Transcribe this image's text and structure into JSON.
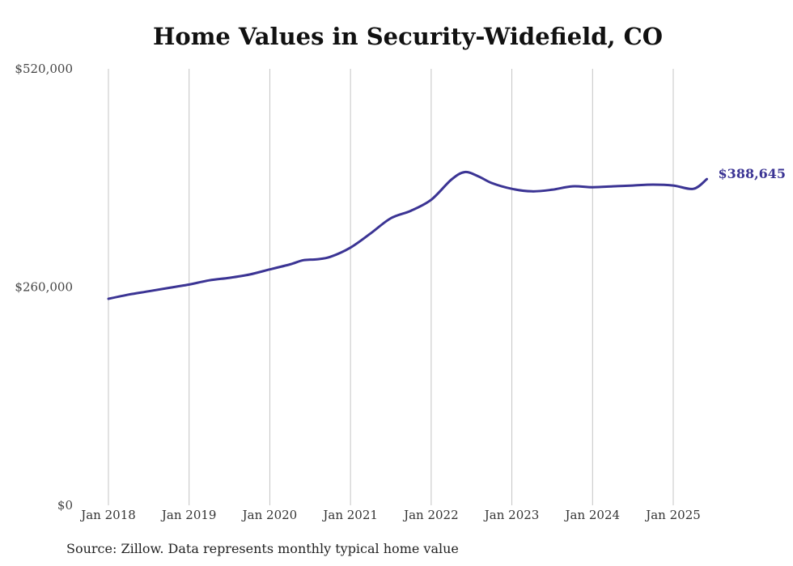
{
  "chart_data": {
    "type": "line",
    "title": "Home Values in Security-Widefield, CO",
    "xlabel": "",
    "ylabel": "",
    "ylim": [
      0,
      520000
    ],
    "yticks": [
      {
        "value": 0,
        "label": "$0"
      },
      {
        "value": 260000,
        "label": "$260,000"
      },
      {
        "value": 520000,
        "label": "$520,000"
      }
    ],
    "xticks": [
      "Jan 2018",
      "Jan 2019",
      "Jan 2020",
      "Jan 2021",
      "Jan 2022",
      "Jan 2023",
      "Jan 2024",
      "Jan 2025"
    ],
    "grid": "vertical",
    "line_color": "#3b3494",
    "end_label": "$388,645",
    "series": [
      {
        "values": [
          {
            "x": "2018-01",
            "y": 246000
          },
          {
            "x": "2018-04",
            "y": 251000
          },
          {
            "x": "2018-07",
            "y": 255000
          },
          {
            "x": "2018-10",
            "y": 259000
          },
          {
            "x": "2019-01",
            "y": 263000
          },
          {
            "x": "2019-04",
            "y": 268000
          },
          {
            "x": "2019-07",
            "y": 271000
          },
          {
            "x": "2019-10",
            "y": 275000
          },
          {
            "x": "2020-01",
            "y": 281000
          },
          {
            "x": "2020-04",
            "y": 287000
          },
          {
            "x": "2020-06",
            "y": 292000
          },
          {
            "x": "2020-08",
            "y": 293000
          },
          {
            "x": "2020-10",
            "y": 296000
          },
          {
            "x": "2021-01",
            "y": 307000
          },
          {
            "x": "2021-04",
            "y": 324000
          },
          {
            "x": "2021-07",
            "y": 342000
          },
          {
            "x": "2021-10",
            "y": 351000
          },
          {
            "x": "2022-01",
            "y": 364000
          },
          {
            "x": "2022-04",
            "y": 388000
          },
          {
            "x": "2022-06",
            "y": 397000
          },
          {
            "x": "2022-08",
            "y": 392000
          },
          {
            "x": "2022-10",
            "y": 384000
          },
          {
            "x": "2023-01",
            "y": 377000
          },
          {
            "x": "2023-04",
            "y": 374000
          },
          {
            "x": "2023-07",
            "y": 376000
          },
          {
            "x": "2023-10",
            "y": 380000
          },
          {
            "x": "2024-01",
            "y": 379000
          },
          {
            "x": "2024-04",
            "y": 380000
          },
          {
            "x": "2024-07",
            "y": 381000
          },
          {
            "x": "2024-10",
            "y": 382000
          },
          {
            "x": "2025-01",
            "y": 381000
          },
          {
            "x": "2025-04",
            "y": 377000
          },
          {
            "x": "2025-06",
            "y": 388645
          }
        ]
      }
    ]
  },
  "source_note": "Source: Zillow. Data represents monthly typical home value"
}
